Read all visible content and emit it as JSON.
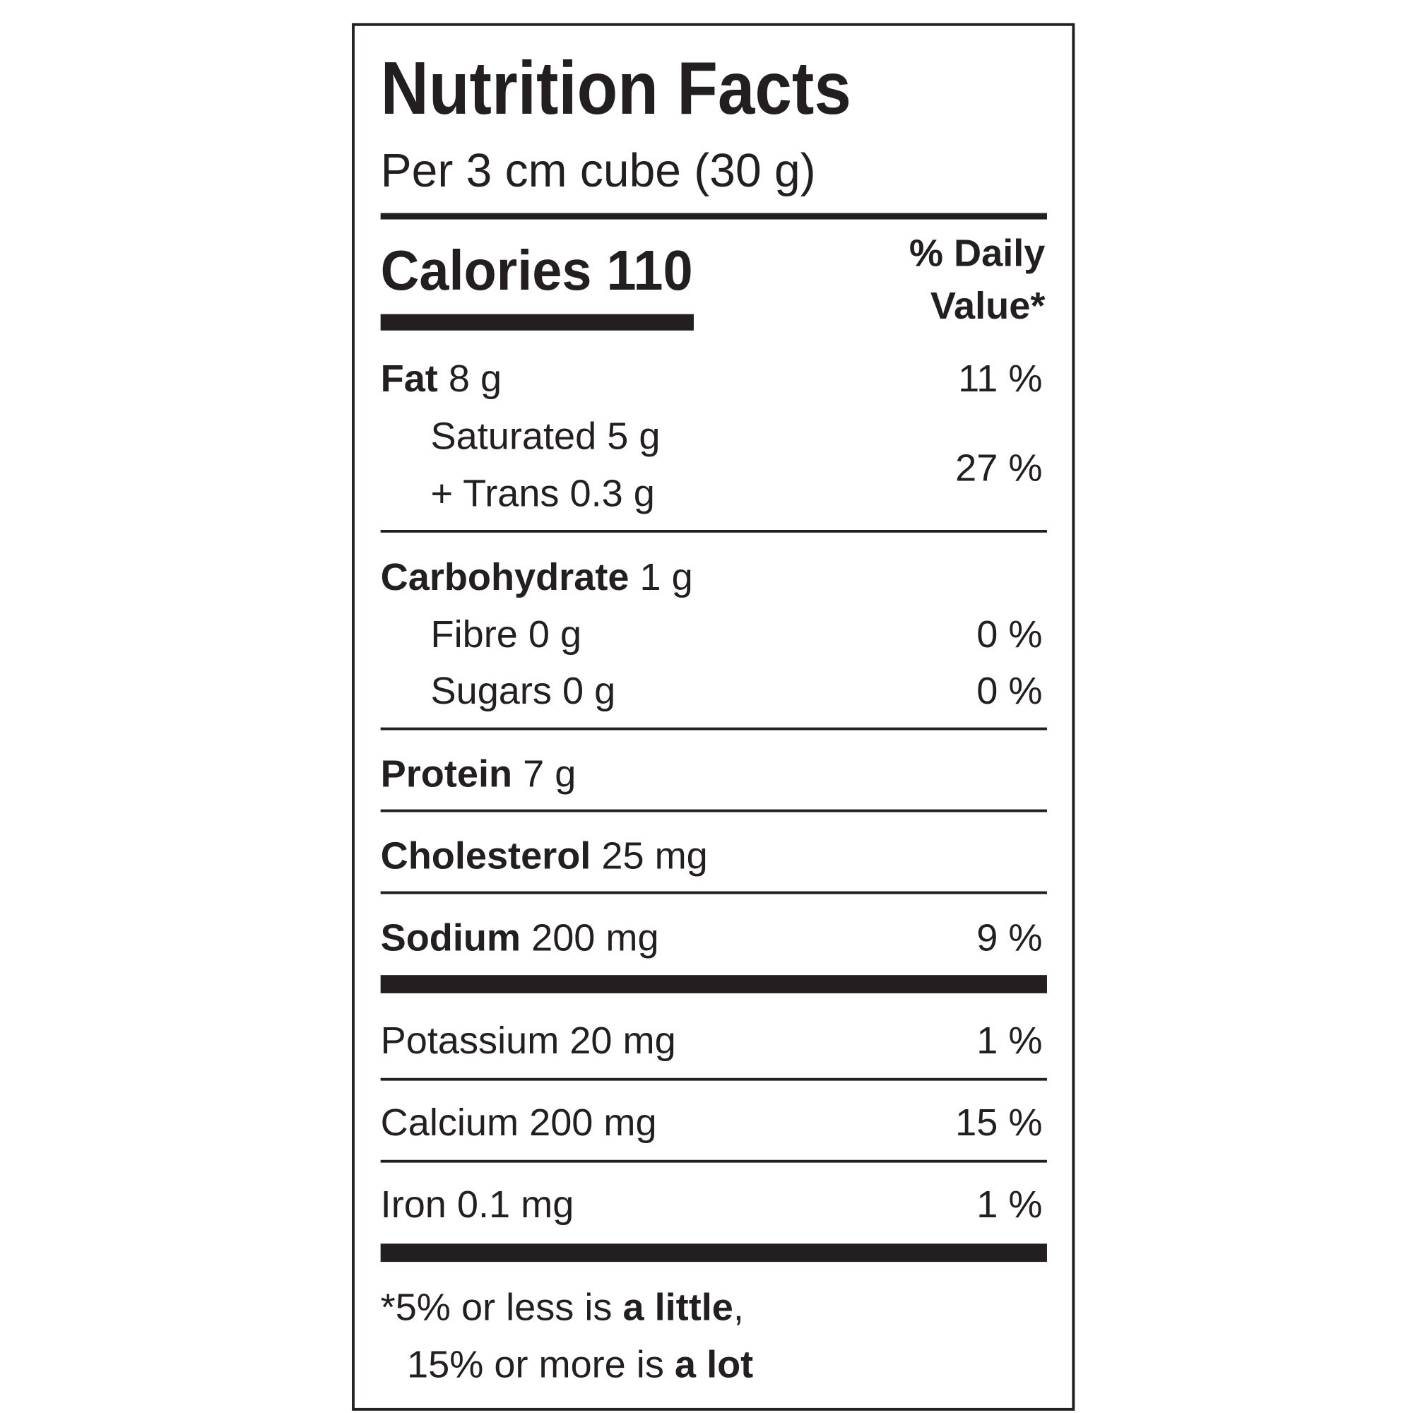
{
  "header": {
    "title": "Nutrition Facts",
    "serving": "Per 3 cm cube (30 g)"
  },
  "calories": {
    "label": "Calories",
    "value": "110"
  },
  "daily_value_heading": [
    "% Daily",
    "Value*"
  ],
  "rows": [
    {
      "name": "Fat",
      "amount": "8 g",
      "dv": "11 %"
    },
    {
      "lines": [
        "Saturated 5 g",
        "+ Trans 0.3 g"
      ],
      "dv": "27 %"
    },
    {
      "name": "Carbohydrate",
      "amount": "1 g"
    },
    {
      "text": "Fibre 0 g",
      "dv": "0 %"
    },
    {
      "text": "Sugars 0 g",
      "dv": "0 %"
    },
    {
      "name": "Protein",
      "amount": "7 g"
    },
    {
      "name": "Cholesterol",
      "amount": "25 mg"
    },
    {
      "name": "Sodium",
      "amount": "200 mg",
      "dv": "9 %"
    },
    {
      "text": "Potassium 20 mg",
      "dv": "1 %"
    },
    {
      "text": "Calcium 200 mg",
      "dv": "15 %"
    },
    {
      "text": "Iron 0.1 mg",
      "dv": "1 %"
    }
  ],
  "footnote": {
    "line1": [
      "*5% or less is",
      "a little",
      ","
    ],
    "line2": [
      "15% or more is",
      "a lot"
    ]
  }
}
